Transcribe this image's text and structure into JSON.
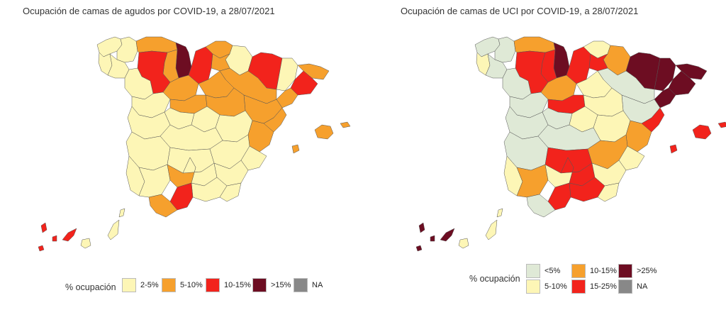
{
  "colors": {
    "lt5": "#dfe9d6",
    "c2_5": "#fdf6b6",
    "c5_10": "#f6a02d",
    "c10_15": "#f2231c",
    "c15": "#6d0d22",
    "na": "#888888",
    "uci5_10": "#fdf6b6",
    "uci10_15": "#f6a02d",
    "uci15_25": "#f2231c",
    "uci25": "#6d0d22"
  },
  "maps": [
    {
      "title": "Ocupación de camas de agudos por COVID-19, a 28/07/2021",
      "legend": {
        "title": "% ocupación",
        "items": [
          {
            "label": "2-5%",
            "color": "#fdf6b6"
          },
          {
            "label": "5-10%",
            "color": "#f6a02d"
          },
          {
            "label": "10-15%",
            "color": "#f2231c"
          },
          {
            "label": ">15%",
            "color": "#6d0d22"
          },
          {
            "label": "NA",
            "color": "#888888"
          }
        ]
      }
    },
    {
      "title": "Ocupación de camas de UCI por COVID-19, a 28/07/2021",
      "legend": {
        "title": "% ocupación",
        "items": [
          {
            "label": "<5%",
            "color": "#dfe9d6"
          },
          {
            "label": "10-15%",
            "color": "#f6a02d"
          },
          {
            "label": ">25%",
            "color": "#6d0d22"
          },
          {
            "label": "5-10%",
            "color": "#fdf6b6"
          },
          {
            "label": "15-25%",
            "color": "#f2231c"
          },
          {
            "label": "NA",
            "color": "#888888"
          }
        ]
      }
    }
  ]
}
